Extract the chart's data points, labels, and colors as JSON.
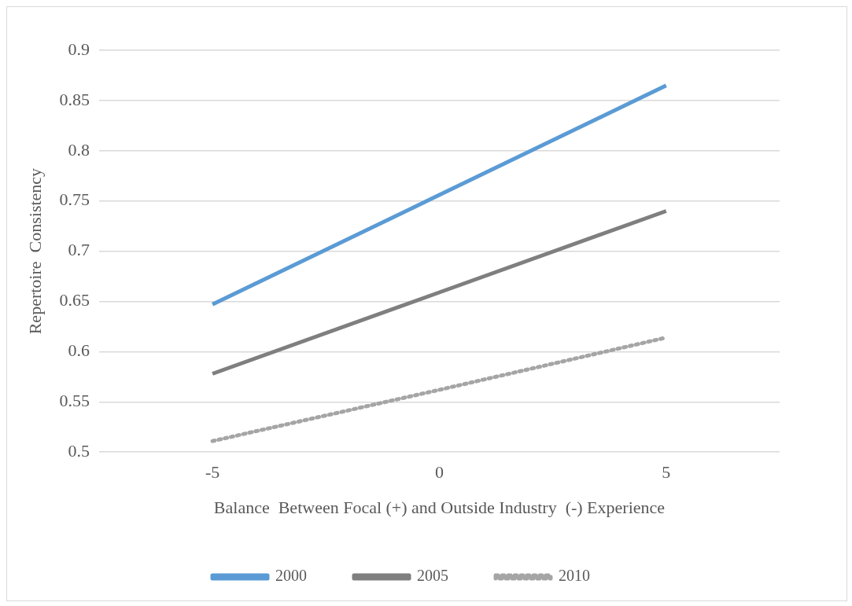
{
  "chart_data": {
    "type": "line",
    "xlabel": "Balance  Between Focal (+) and Outside Industry  (-) Experience",
    "ylabel": "Repertoire  Consistency",
    "categories": [
      "-5",
      "0",
      "5"
    ],
    "series": [
      {
        "name": "2000",
        "color": "#5b9bd5",
        "values": [
          0.647,
          0.756,
          0.865
        ]
      },
      {
        "name": "2005",
        "color": "#7f7f7f",
        "values": [
          0.578,
          0.659,
          0.74
        ]
      },
      {
        "name": "2010",
        "color": "#a5a5a5",
        "values": [
          0.511,
          0.562,
          0.614
        ],
        "line_style": "dotted"
      }
    ],
    "ylim": [
      0.5,
      0.9
    ],
    "yticks": [
      0.5,
      0.55,
      0.6,
      0.65,
      0.7,
      0.75,
      0.8,
      0.85,
      0.9
    ],
    "grid": "y",
    "legend": "bottom",
    "marker": "none",
    "line_style": "solid"
  }
}
